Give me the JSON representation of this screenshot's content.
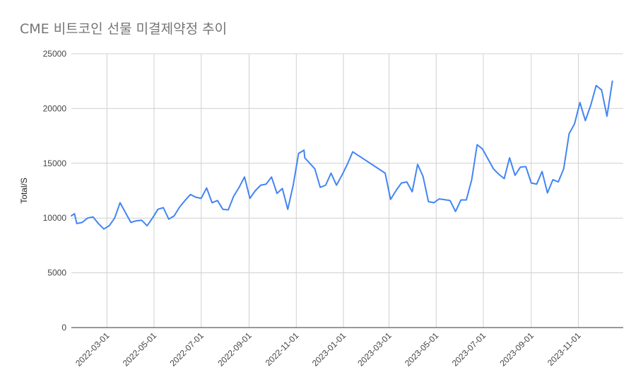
{
  "chart_data": {
    "type": "line",
    "title": "CME 비트코인 선물 미결제약정 추이",
    "xlabel": "",
    "ylabel": "Total/S",
    "x_range": [
      "2022-01-14",
      "2023-12-29"
    ],
    "ylim": [
      0,
      25000
    ],
    "yticks": [
      "0",
      "5000",
      "10000",
      "15000",
      "20000",
      "25000"
    ],
    "xticks": [
      "2022-03-01",
      "2022-05-01",
      "2022-07-01",
      "2022-09-01",
      "2022-11-01",
      "2023-01-01",
      "2023-03-01",
      "2023-05-01",
      "2023-07-01",
      "2023-09-01",
      "2023-11-01"
    ],
    "grid": true,
    "series": [
      {
        "name": "",
        "color": "#4285f4",
        "points": [
          [
            "2022-01-14",
            10200
          ],
          [
            "2022-01-18",
            10400
          ],
          [
            "2022-01-21",
            9500
          ],
          [
            "2022-01-28",
            9600
          ],
          [
            "2022-02-04",
            10000
          ],
          [
            "2022-02-11",
            10100
          ],
          [
            "2022-02-18",
            9500
          ],
          [
            "2022-02-25",
            9000
          ],
          [
            "2022-03-04",
            9300
          ],
          [
            "2022-03-11",
            10000
          ],
          [
            "2022-03-18",
            11400
          ],
          [
            "2022-03-25",
            10500
          ],
          [
            "2022-04-01",
            9600
          ],
          [
            "2022-04-08",
            9750
          ],
          [
            "2022-04-15",
            9800
          ],
          [
            "2022-04-22",
            9300
          ],
          [
            "2022-04-29",
            10000
          ],
          [
            "2022-05-06",
            10800
          ],
          [
            "2022-05-13",
            10950
          ],
          [
            "2022-05-20",
            9900
          ],
          [
            "2022-05-27",
            10200
          ],
          [
            "2022-06-03",
            11000
          ],
          [
            "2022-06-10",
            11600
          ],
          [
            "2022-06-17",
            12150
          ],
          [
            "2022-06-24",
            11900
          ],
          [
            "2022-07-01",
            11800
          ],
          [
            "2022-07-08",
            12750
          ],
          [
            "2022-07-15",
            11400
          ],
          [
            "2022-07-22",
            11600
          ],
          [
            "2022-07-29",
            10800
          ],
          [
            "2022-08-05",
            10750
          ],
          [
            "2022-08-12",
            12000
          ],
          [
            "2022-08-19",
            12800
          ],
          [
            "2022-08-26",
            13750
          ],
          [
            "2022-09-02",
            11800
          ],
          [
            "2022-09-09",
            12500
          ],
          [
            "2022-09-16",
            13000
          ],
          [
            "2022-09-23",
            13100
          ],
          [
            "2022-09-30",
            13750
          ],
          [
            "2022-10-07",
            12250
          ],
          [
            "2022-10-14",
            12700
          ],
          [
            "2022-10-21",
            10800
          ],
          [
            "2022-10-28",
            13000
          ],
          [
            "2022-11-04",
            15900
          ],
          [
            "2022-11-11",
            16200
          ],
          [
            "2022-11-12",
            15500
          ],
          [
            "2022-11-25",
            14500
          ],
          [
            "2022-12-02",
            12800
          ],
          [
            "2022-12-09",
            13000
          ],
          [
            "2022-12-16",
            14100
          ],
          [
            "2022-12-23",
            13000
          ],
          [
            "2022-12-30",
            13900
          ],
          [
            "2023-01-06",
            14900
          ],
          [
            "2023-01-13",
            16050
          ],
          [
            "2023-02-24",
            14100
          ],
          [
            "2023-03-03",
            11700
          ],
          [
            "2023-03-10",
            12500
          ],
          [
            "2023-03-17",
            13200
          ],
          [
            "2023-03-24",
            13300
          ],
          [
            "2023-03-31",
            12400
          ],
          [
            "2023-04-07",
            14900
          ],
          [
            "2023-04-14",
            13800
          ],
          [
            "2023-04-21",
            11500
          ],
          [
            "2023-04-28",
            11400
          ],
          [
            "2023-05-05",
            11750
          ],
          [
            "2023-05-19",
            11600
          ],
          [
            "2023-05-26",
            10600
          ],
          [
            "2023-06-02",
            11650
          ],
          [
            "2023-06-09",
            11650
          ],
          [
            "2023-06-16",
            13500
          ],
          [
            "2023-06-23",
            16700
          ],
          [
            "2023-06-30",
            16300
          ],
          [
            "2023-07-07",
            15400
          ],
          [
            "2023-07-14",
            14500
          ],
          [
            "2023-07-21",
            14000
          ],
          [
            "2023-07-28",
            13600
          ],
          [
            "2023-08-04",
            15500
          ],
          [
            "2023-08-11",
            13900
          ],
          [
            "2023-08-18",
            14650
          ],
          [
            "2023-08-25",
            14700
          ],
          [
            "2023-09-01",
            13200
          ],
          [
            "2023-09-08",
            13100
          ],
          [
            "2023-09-15",
            14250
          ],
          [
            "2023-09-22",
            12300
          ],
          [
            "2023-09-29",
            13500
          ],
          [
            "2023-10-06",
            13300
          ],
          [
            "2023-10-13",
            14500
          ],
          [
            "2023-10-20",
            17700
          ],
          [
            "2023-10-27",
            18600
          ],
          [
            "2023-11-03",
            20550
          ],
          [
            "2023-11-10",
            18900
          ],
          [
            "2023-11-17",
            20300
          ],
          [
            "2023-11-24",
            22100
          ],
          [
            "2023-12-01",
            21700
          ],
          [
            "2023-12-08",
            19300
          ],
          [
            "2023-12-15",
            22500
          ]
        ]
      }
    ]
  }
}
